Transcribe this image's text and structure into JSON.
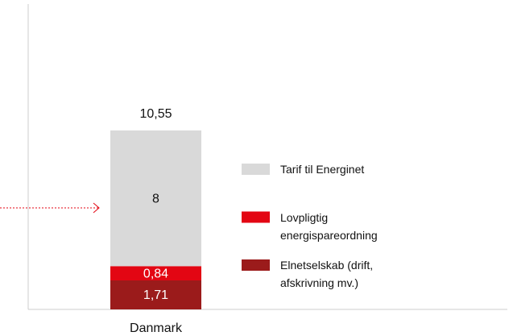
{
  "chart_data": {
    "type": "stacked-bar",
    "categories": [
      "Danmark"
    ],
    "series": [
      {
        "name": "Elnetselskab (drift, afskrivning mv.)",
        "color": "#9b1b1b",
        "label_color": "#ffffff",
        "values": [
          1.71
        ],
        "value_labels": [
          "1,71"
        ]
      },
      {
        "name": "Lovpligtig energispareordning",
        "color": "#e30613",
        "label_color": "#ffffff",
        "values": [
          0.84
        ],
        "value_labels": [
          "0,84"
        ]
      },
      {
        "name": "Tarif til Energinet",
        "color": "#d9d9d9",
        "label_color": "#111111",
        "values": [
          8
        ],
        "value_labels": [
          "8"
        ]
      }
    ],
    "totals": [
      10.55
    ],
    "total_labels": [
      "10,55"
    ],
    "ylim": [
      0,
      18
    ]
  }
}
